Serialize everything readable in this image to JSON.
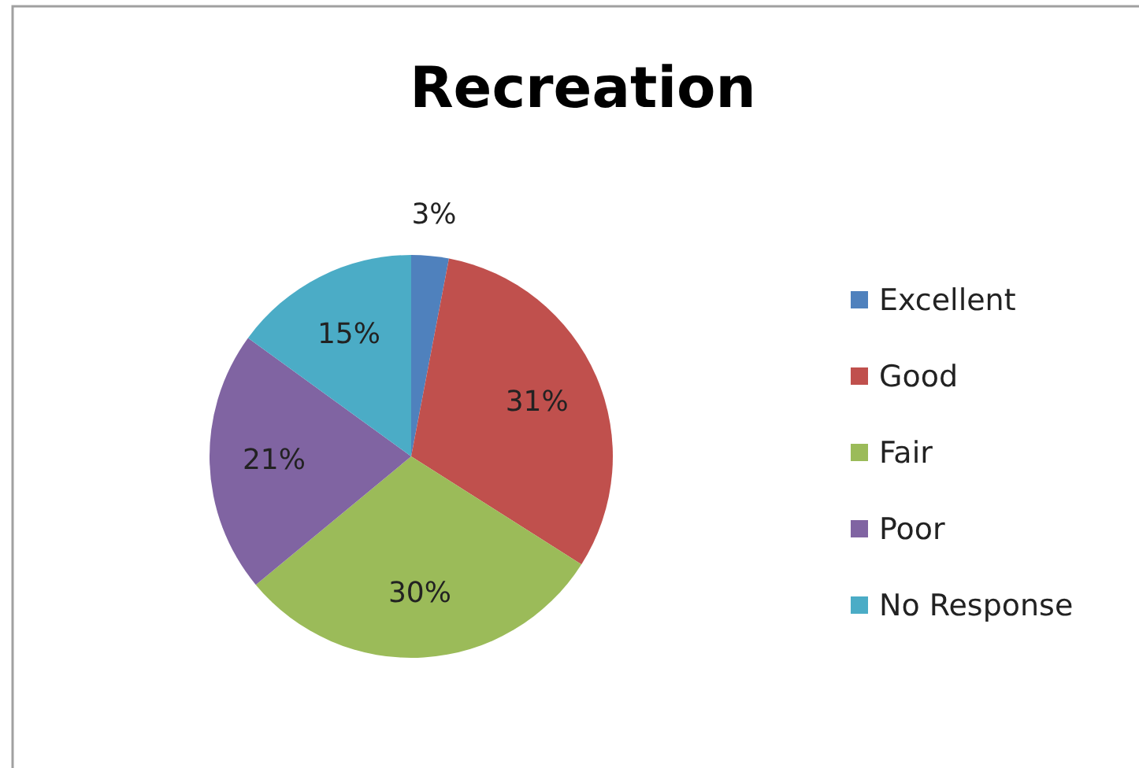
{
  "chart_data": {
    "type": "pie",
    "title": "Recreation",
    "categories": [
      "Excellent",
      "Good",
      "Fair",
      "Poor",
      "No Response"
    ],
    "values": [
      3,
      31,
      30,
      21,
      15
    ],
    "colors": [
      "#4f81bd",
      "#c0504d",
      "#9bbb59",
      "#8064a2",
      "#4bacc6"
    ],
    "value_labels": [
      "3%",
      "31%",
      "30%",
      "21%",
      "15%"
    ],
    "legend": "right"
  }
}
